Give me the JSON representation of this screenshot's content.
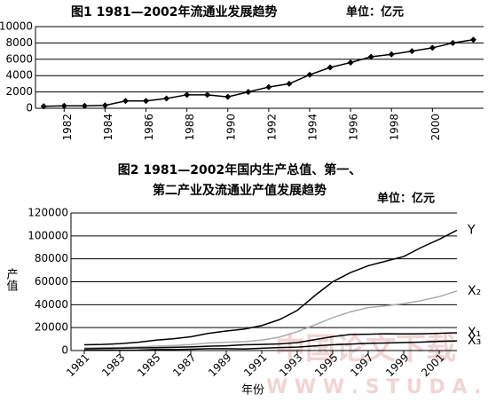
{
  "chart_data": [
    {
      "type": "line",
      "title": "图1    1981—2002年流通业发展趋势",
      "unit": "单位：亿元",
      "x": [
        1981,
        1982,
        1983,
        1984,
        1985,
        1986,
        1987,
        1988,
        1989,
        1990,
        1991,
        1992,
        1993,
        1994,
        1995,
        1996,
        1997,
        1998,
        1999,
        2000,
        2001,
        2002
      ],
      "values": [
        250,
        300,
        300,
        350,
        900,
        900,
        1200,
        1650,
        1650,
        1400,
        2000,
        2600,
        3000,
        4100,
        5000,
        5600,
        6300,
        6600,
        7000,
        7400,
        8000,
        8400
      ],
      "color": "#000000",
      "markers": true,
      "xlim": [
        1980.6,
        2002.5
      ],
      "xticks": [
        1982,
        1984,
        1986,
        1988,
        1990,
        1992,
        1994,
        1996,
        1998,
        2000
      ],
      "ylim": [
        0,
        10000
      ],
      "yticks": [
        0,
        2000,
        4000,
        6000,
        8000,
        10000
      ],
      "grid": true
    },
    {
      "type": "line",
      "title_lines": [
        "图2  1981—2002年国内生产总值、第一、",
        "第二产业及流通业产值发展趋势"
      ],
      "unit": "单位：亿元",
      "y_label": "产值",
      "x_label": "年份",
      "x": [
        1981,
        1982,
        1983,
        1984,
        1985,
        1986,
        1987,
        1988,
        1989,
        1990,
        1991,
        1992,
        1993,
        1994,
        1995,
        1996,
        1997,
        1998,
        1999,
        2000,
        2001,
        2002
      ],
      "series": [
        {
          "name": "Y",
          "color": "#000000",
          "values": [
            5000,
            5300,
            6000,
            7200,
            9000,
            10300,
            12000,
            15000,
            17000,
            18700,
            21800,
            27000,
            35000,
            48000,
            60000,
            68000,
            74000,
            78000,
            82000,
            90000,
            97000,
            105000
          ]
        },
        {
          "name": "X₂",
          "color": "#aaaaaa",
          "values": [
            2200,
            2400,
            2600,
            3100,
            3900,
            4400,
            5200,
            6600,
            7300,
            7700,
            9100,
            11700,
            16400,
            22400,
            28700,
            33800,
            37500,
            39000,
            40900,
            43600,
            47000,
            52000
          ]
        },
        {
          "name": "X₁",
          "color": "#000000",
          "values": [
            1500,
            1800,
            2000,
            2300,
            2500,
            2800,
            3200,
            3800,
            4200,
            5000,
            5300,
            5800,
            6900,
            9600,
            12100,
            14000,
            14200,
            14600,
            14500,
            14600,
            15000,
            15500
          ]
        },
        {
          "name": "X₃",
          "color": "#000000",
          "values": [
            250,
            300,
            300,
            350,
            900,
            900,
            1200,
            1650,
            1650,
            1400,
            2000,
            2600,
            3000,
            4100,
            5000,
            5600,
            6300,
            6600,
            7000,
            7400,
            8000,
            8400
          ]
        }
      ],
      "xlim": [
        1980.25,
        2002
      ],
      "xticks": [
        1981,
        1983,
        1985,
        1987,
        1989,
        1991,
        1993,
        1995,
        1997,
        1999,
        2001
      ],
      "ylim": [
        0,
        120000
      ],
      "yticks": [
        0,
        20000,
        40000,
        60000,
        80000,
        100000,
        120000
      ],
      "grid": true
    }
  ],
  "watermark": {
    "line1": "中国论文下载",
    "line2": "W W W . S T U D A ."
  }
}
